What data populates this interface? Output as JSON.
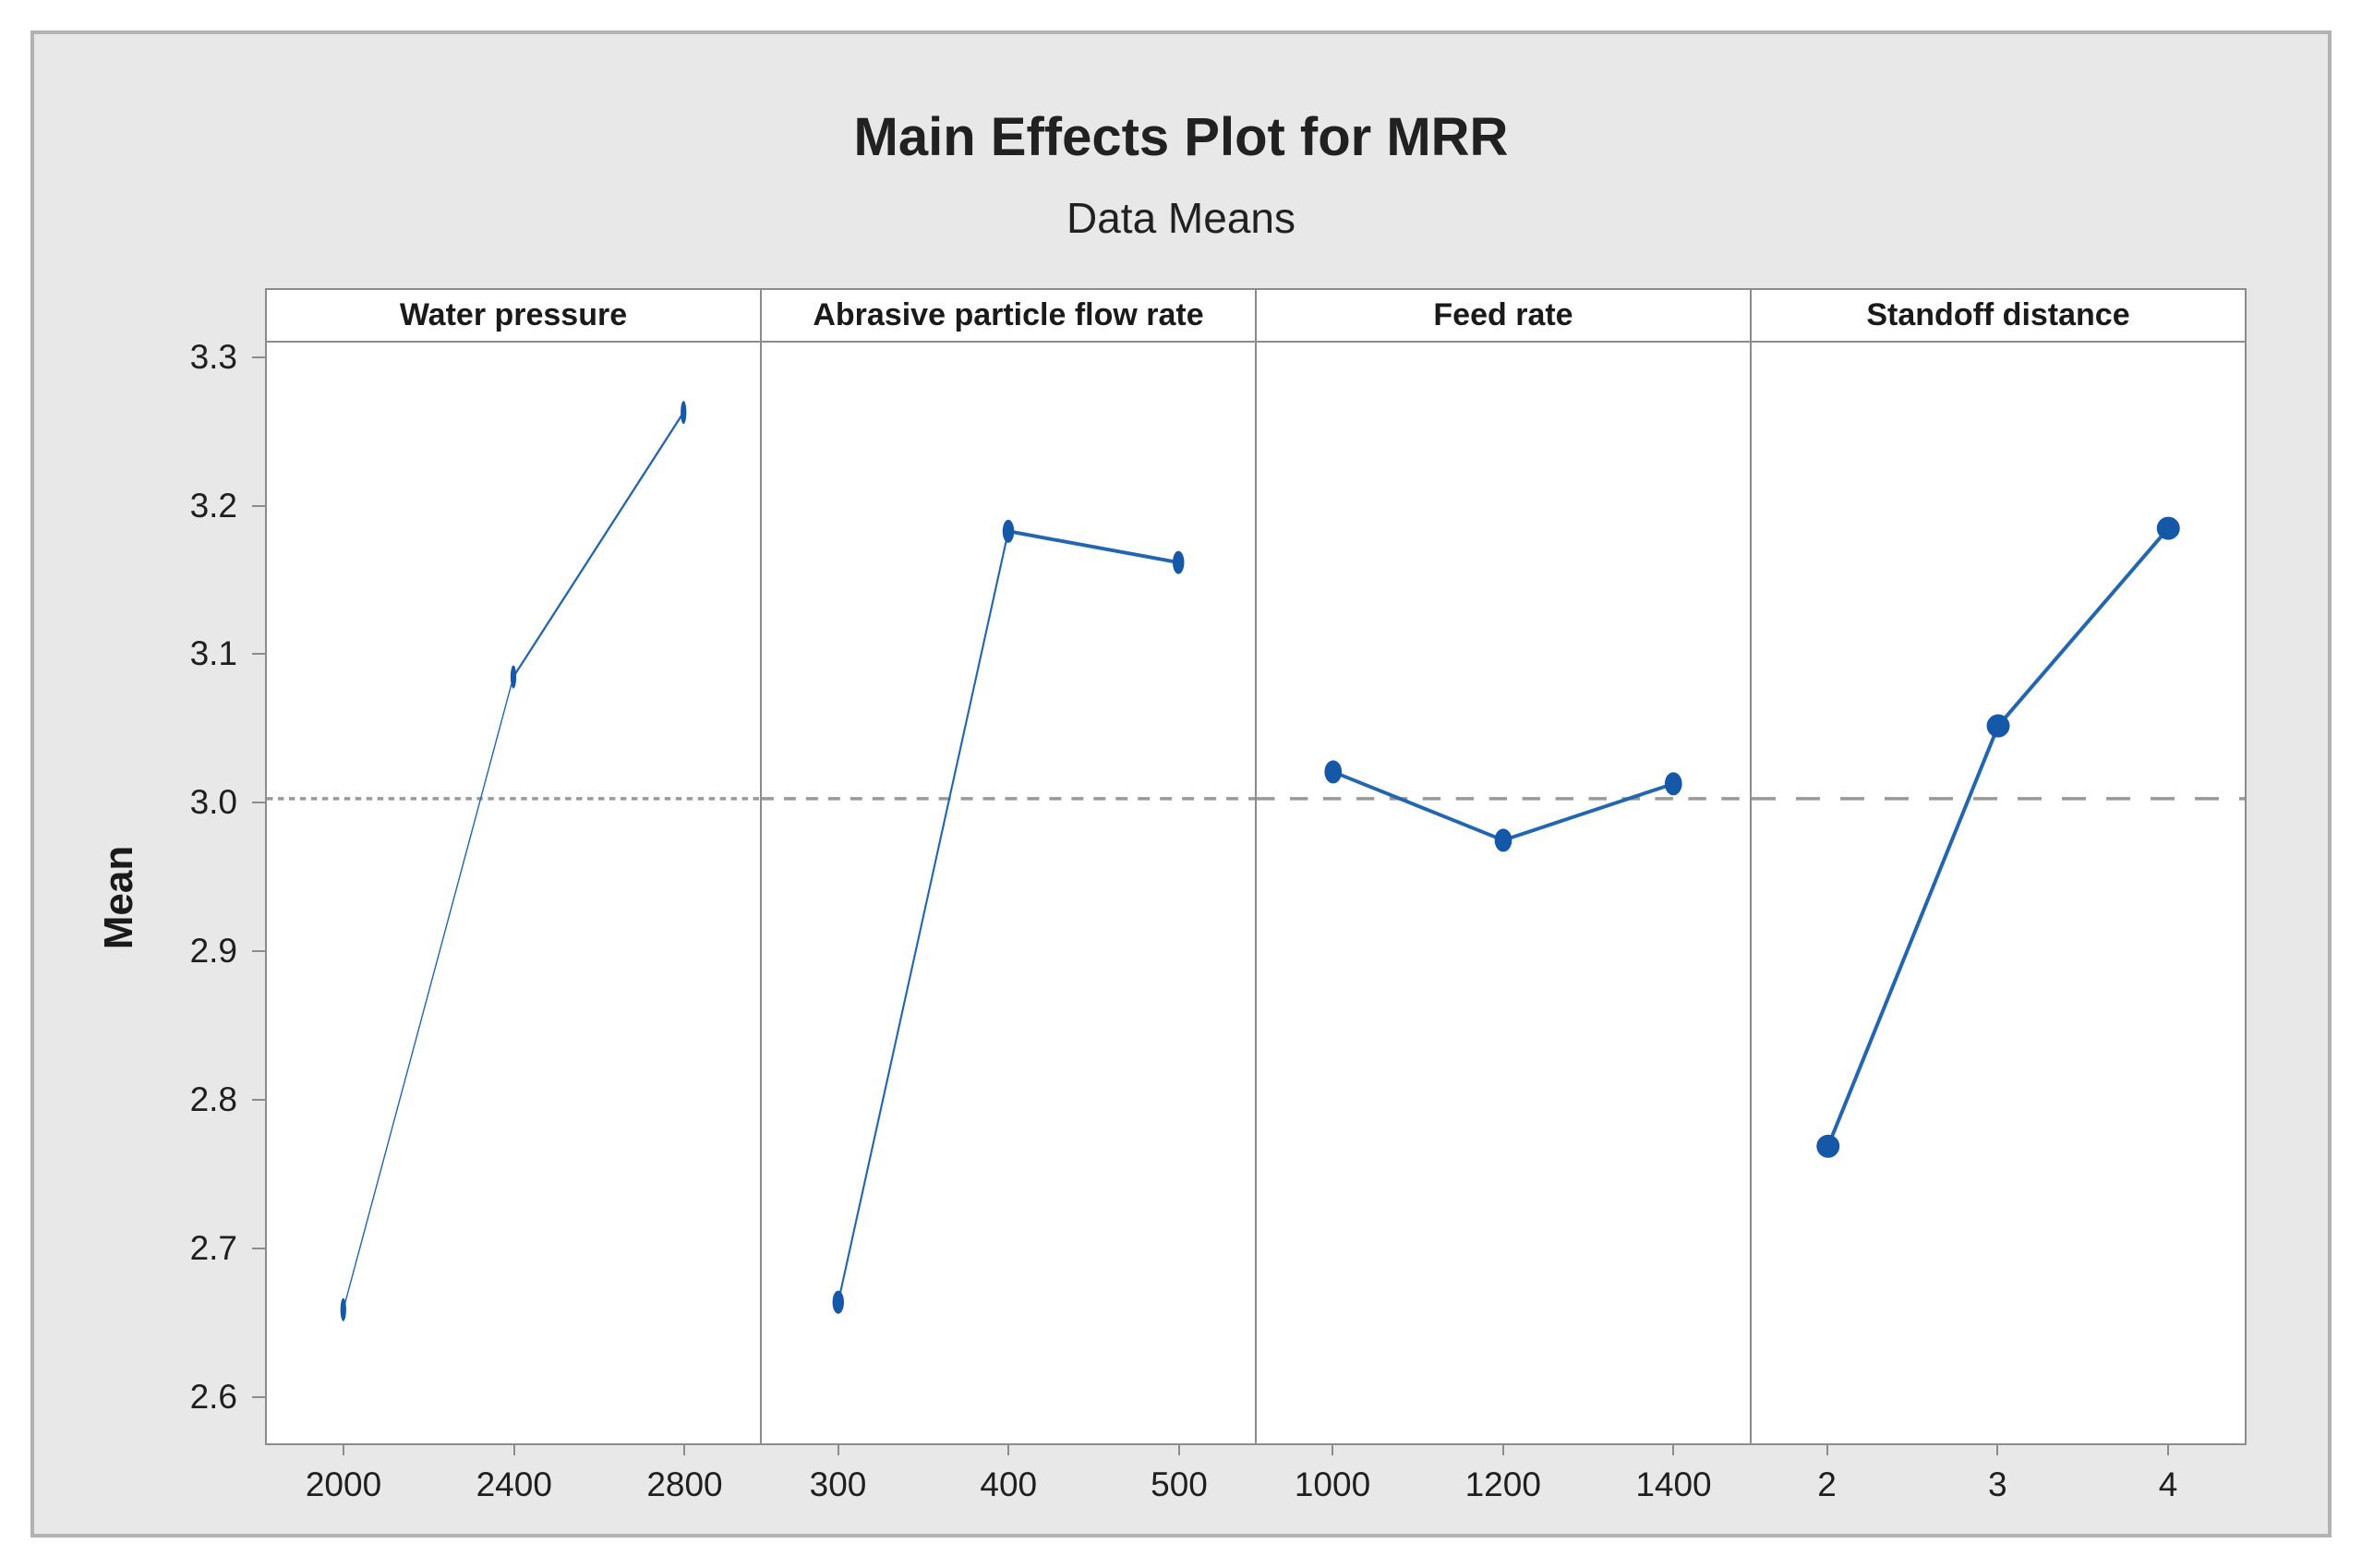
{
  "title": "Main Effects Plot for MRR",
  "subtitle": "Data Means",
  "chart_data": {
    "type": "line",
    "title": "Main Effects Plot for MRR",
    "subtitle": "Data Means",
    "ylabel": "Mean",
    "ylim": [
      2.57,
      3.311
    ],
    "yticks": [
      3.3,
      3.2,
      3.1,
      3.0,
      2.9,
      2.8,
      2.7,
      2.6
    ],
    "ytick_labels": [
      "3.3",
      "3.2",
      "3.1",
      "3.0",
      "2.9",
      "2.8",
      "2.7",
      "2.6"
    ],
    "reference_line_mean": 3.004,
    "grid": false,
    "legend": "none",
    "panels": [
      {
        "label": "Water pressure",
        "categories": [
          "2000",
          "2400",
          "2800"
        ],
        "values": [
          2.66,
          3.086,
          3.264
        ]
      },
      {
        "label": "Abrasive particle flow rate",
        "categories": [
          "300",
          "400",
          "500"
        ],
        "values": [
          2.665,
          3.184,
          3.163
        ]
      },
      {
        "label": "Feed rate",
        "categories": [
          "1000",
          "1200",
          "1400"
        ],
        "values": [
          3.022,
          2.976,
          3.014
        ]
      },
      {
        "label": "Standoff distance",
        "categories": [
          "2",
          "3",
          "4"
        ],
        "values": [
          2.77,
          3.053,
          3.186
        ]
      }
    ]
  },
  "colors": {
    "marker": "#1558a8",
    "line": "#2366b0",
    "reference_dash": "#999999",
    "frame": "#8c8c8c",
    "canvas_bg": "#e8e8e8",
    "panel_bg": "#ffffff",
    "text": "#212121"
  }
}
